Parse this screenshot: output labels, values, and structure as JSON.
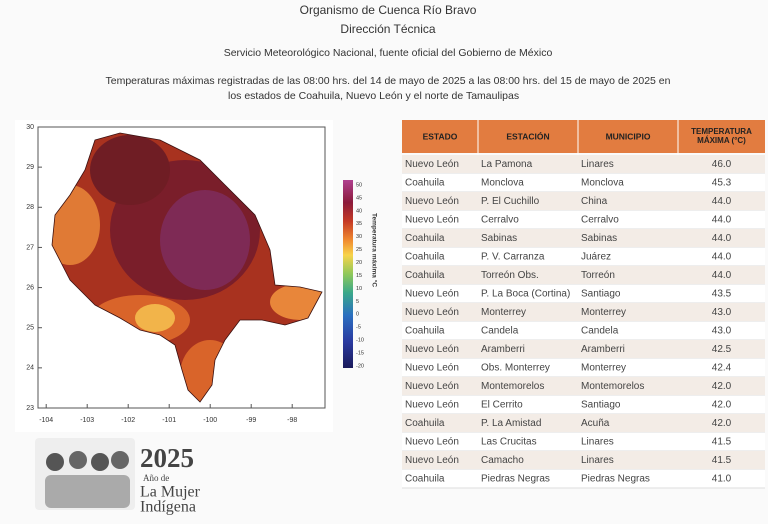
{
  "header": {
    "organization": "Organismo de Cuenca Río Bravo",
    "department": "Dirección Técnica",
    "service": "Servicio Meteorológico Nacional, fuente oficial del Gobierno de México",
    "title": [
      "Temperaturas máximas registradas de las 08:00 hrs. del 14 de mayo de 2025 a las 08:00 hrs. del 15 de mayo de 2025 en",
      "los estados de Coahuila, Nuevo León y el norte de Tamaulipas"
    ]
  },
  "map": {
    "xlim": [
      -104.2,
      -97.2
    ],
    "ylim": [
      23,
      30
    ],
    "xticks": [
      -104,
      -103,
      -102,
      -101,
      -100,
      -99,
      -98
    ],
    "yticks": [
      23,
      24,
      25,
      26,
      27,
      28,
      29,
      30
    ],
    "colorbar": {
      "label": "Temperatura máxima °C",
      "ticks": [
        50,
        45,
        40,
        35,
        30,
        25,
        20,
        15,
        10,
        5,
        0,
        -5,
        -10,
        -15,
        -20
      ]
    }
  },
  "table": {
    "header": [
      "ESTADO",
      "ESTACIÓN",
      "MUNICIPIO",
      "TEMPERATURA MÁXIMA (°C)"
    ],
    "rows": [
      [
        "Nuevo León",
        "La Pamona",
        "Linares",
        "46.0"
      ],
      [
        "Coahuila",
        "Monclova",
        "Monclova",
        "45.3"
      ],
      [
        "Nuevo León",
        "P. El Cuchillo",
        "China",
        "44.0"
      ],
      [
        "Nuevo León",
        "Cerralvo",
        "Cerralvo",
        "44.0"
      ],
      [
        "Coahuila",
        "Sabinas",
        "Sabinas",
        "44.0"
      ],
      [
        "Coahuila",
        "P. V. Carranza",
        "Juárez",
        "44.0"
      ],
      [
        "Coahuila",
        "Torreón Obs.",
        "Torreón",
        "44.0"
      ],
      [
        "Nuevo León",
        "P. La Boca (Cortina)",
        "Santiago",
        "43.5"
      ],
      [
        "Nuevo León",
        "Monterrey",
        "Monterrey",
        "43.0"
      ],
      [
        "Coahuila",
        "Candela",
        "Candela",
        "43.0"
      ],
      [
        "Nuevo León",
        "Aramberri",
        "Aramberri",
        "42.5"
      ],
      [
        "Nuevo León",
        "Obs. Monterrey",
        "Monterrey",
        "42.4"
      ],
      [
        "Nuevo León",
        "Montemorelos",
        "Montemorelos",
        "42.0"
      ],
      [
        "Nuevo León",
        "El Cerrito",
        "Santiago",
        "42.0"
      ],
      [
        "Coahuila",
        "P. La Amistad",
        "Acuña",
        "42.0"
      ],
      [
        "Nuevo León",
        "Las Crucitas",
        "Linares",
        "41.5"
      ],
      [
        "Nuevo León",
        "Camacho",
        "Linares",
        "41.5"
      ],
      [
        "Coahuila",
        "Piedras Negras",
        "Piedras Negras",
        "41.0"
      ]
    ]
  },
  "logo": {
    "year": "2025",
    "line1": "Año de",
    "line2": "La Mujer",
    "line3": "Indígena"
  }
}
